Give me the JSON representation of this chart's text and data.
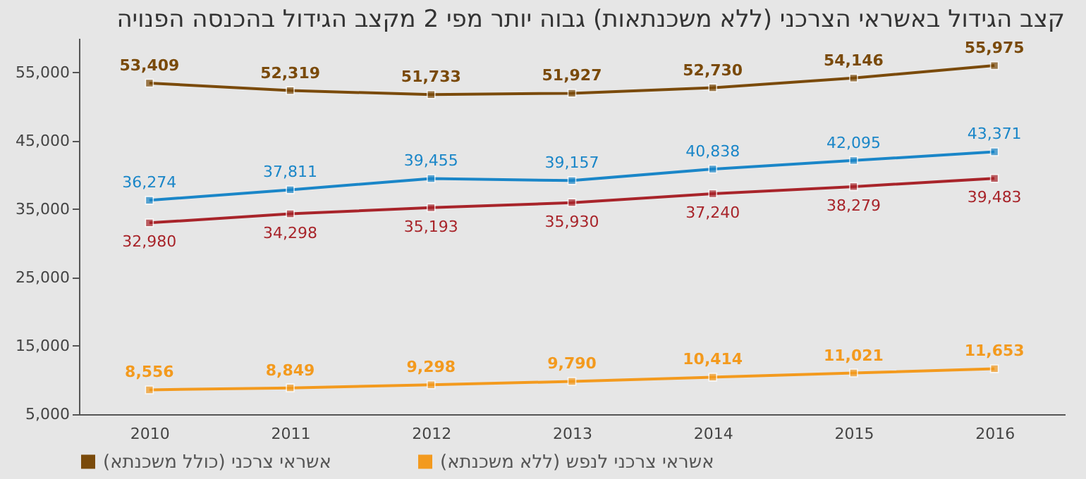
{
  "chart_data": {
    "type": "line",
    "title": "קצב הגידול באשראי הצרכני (ללא משכנתאות) גבוה יותר מפי 2 מקצב הגידול בהכנסה הפנויה",
    "categories": [
      "2010",
      "2011",
      "2012",
      "2013",
      "2014",
      "2015",
      "2016"
    ],
    "series": [
      {
        "name": "אשראי צרכני (כולל משכנתא)",
        "color": "#7a4a0a",
        "values": [
          53409,
          52319,
          51733,
          51927,
          52730,
          54146,
          55975
        ],
        "value_labels": [
          "53,409",
          "52,319",
          "51,733",
          "51,927",
          "52,730",
          "54,146",
          "55,975"
        ]
      },
      {
        "color": "#1a86c8",
        "values": [
          36274,
          37811,
          39455,
          39157,
          40838,
          42095,
          43371
        ],
        "value_labels": [
          "36,274",
          "37,811",
          "39,455",
          "39,157",
          "40,838",
          "42,095",
          "43,371"
        ]
      },
      {
        "color": "#a8242a",
        "values": [
          32980,
          34298,
          35193,
          35930,
          37240,
          38279,
          39483
        ],
        "value_labels": [
          "32,980",
          "34,298",
          "35,193",
          "35,930",
          "37,240",
          "38,279",
          "39,483"
        ]
      },
      {
        "name": "אשראי צרכני לנפש (ללא משכנתא)",
        "color": "#f39a1e",
        "values": [
          8556,
          8849,
          9298,
          9790,
          10414,
          11021,
          11653
        ],
        "value_labels": [
          "8,556",
          "8,849",
          "9,298",
          "9,790",
          "10,414",
          "11,021",
          "11,653"
        ]
      }
    ],
    "ylim": [
      5000,
      60000
    ],
    "yticks": [
      {
        "value": 5000,
        "label": "5,000"
      },
      {
        "value": 15000,
        "label": "15,000"
      },
      {
        "value": 25000,
        "label": "25,000"
      },
      {
        "value": 35000,
        "label": "35,000"
      },
      {
        "value": 45000,
        "label": "45,000"
      },
      {
        "value": 55000,
        "label": "55,000"
      }
    ],
    "marker": "square",
    "line_style": "solid",
    "legend": "bottom",
    "grid": false
  }
}
